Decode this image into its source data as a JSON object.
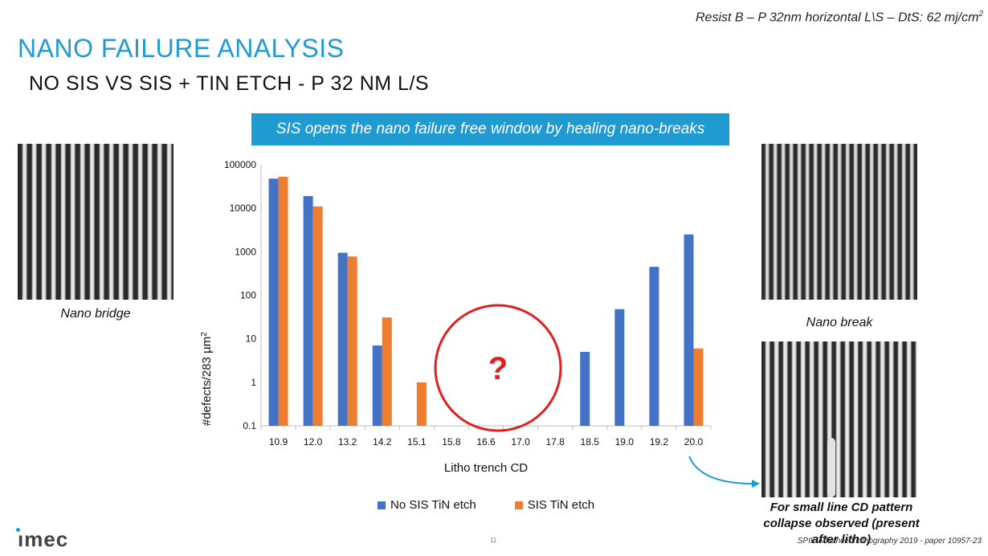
{
  "header": {
    "top_note": "Resist B – P 32nm horizontal L\\S – DtS: 62 mj/cm",
    "top_note_sup": "2",
    "title": "NANO FAILURE ANALYSIS",
    "subtitle": "NO SIS  VS SIS + TIN ETCH - P 32 NM L/S"
  },
  "banner": {
    "text": "SIS opens the nano failure free window by healing nano-breaks"
  },
  "images": {
    "left_caption": "Nano bridge",
    "right_top_caption": "Nano break",
    "right_bottom_caption": "For small line CD pattern collapse observed (present after litho)"
  },
  "annotation": {
    "mark": "?"
  },
  "footer": {
    "logo": "ımec",
    "page_number": "11",
    "reference": "SPIE Advanced Lithography 2019 - paper 10957-23"
  },
  "colors": {
    "accent": "#1f9bd2",
    "no_sis": "#4472c4",
    "sis": "#ed7d31",
    "circle": "#e02020"
  },
  "chart_data": {
    "type": "bar",
    "title": "",
    "xlabel": "Litho trench CD",
    "ylabel": "#defects/283 µm",
    "ylabel_sup": "2",
    "yscale": "log",
    "ylim": [
      0.1,
      100000
    ],
    "yticks": [
      "100000",
      "10000",
      "1000",
      "100",
      "10",
      "1",
      "0.1"
    ],
    "categories": [
      "10.9",
      "12.0",
      "13.2",
      "14.2",
      "15.1",
      "15.8",
      "16.6",
      "17.0",
      "17.8",
      "18.5",
      "19.0",
      "19.2",
      "20.0"
    ],
    "series": [
      {
        "name": "No SIS TiN etch",
        "values": [
          48000,
          19000,
          950,
          7,
          null,
          null,
          null,
          null,
          null,
          5,
          48,
          450,
          2500
        ]
      },
      {
        "name": "SIS TiN etch",
        "values": [
          53000,
          11000,
          780,
          31,
          1,
          null,
          null,
          null,
          null,
          null,
          null,
          null,
          6
        ]
      }
    ],
    "legend": "bottom",
    "grid": false
  }
}
